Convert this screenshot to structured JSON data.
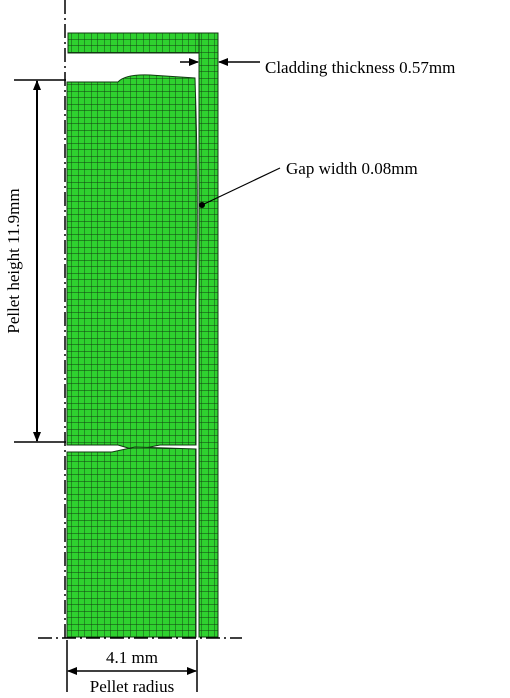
{
  "labels": {
    "cladding_thickness": "Cladding thickness 0.57mm",
    "gap_width": "Gap width 0.08mm",
    "pellet_height": "Pellet height 11.9mm",
    "radius_value": "4.1 mm",
    "radius_label": "Pellet radius"
  }
}
